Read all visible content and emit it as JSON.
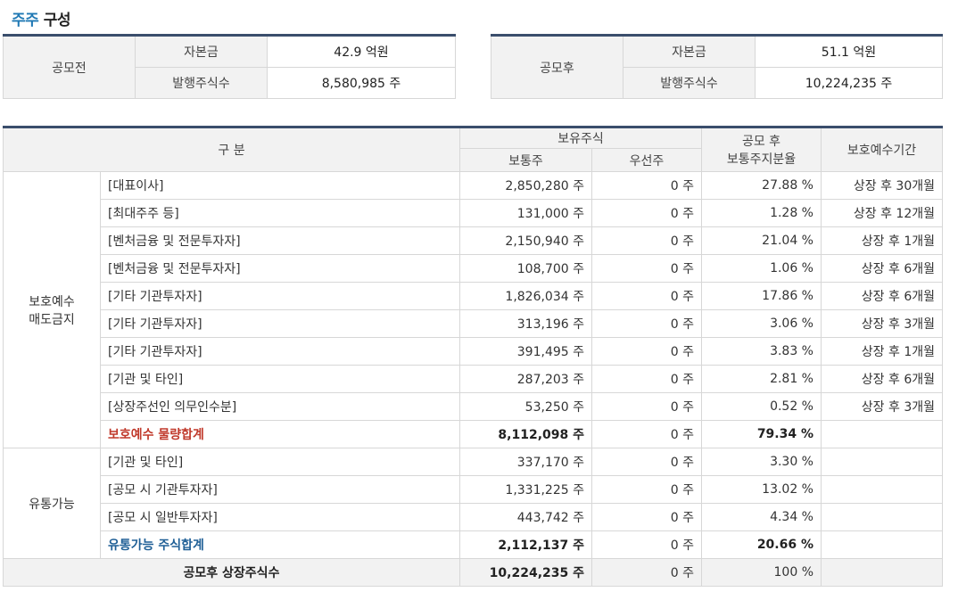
{
  "section_title_accent": "주주",
  "section_title_rest": "구성",
  "before": {
    "label": "공모전",
    "capital_label": "자본금",
    "capital_value": "42.9 억원",
    "shares_label": "발행주식수",
    "shares_value": "8,580,985 주"
  },
  "after": {
    "label": "공모후",
    "capital_label": "자본금",
    "capital_value": "51.1 억원",
    "shares_label": "발행주식수",
    "shares_value": "10,224,235 주"
  },
  "headers": {
    "category": "구   분",
    "holdings": "보유주식",
    "common": "보통주",
    "preferred": "우선주",
    "ratio_line1": "공모 후",
    "ratio_line2": "보통주지분율",
    "lockup": "보호예수기간"
  },
  "group1": {
    "label_line1": "보호예수",
    "label_line2": "매도금지",
    "rows": [
      {
        "name": "[대표이사]",
        "common": "2,850,280 주",
        "preferred": "0 주",
        "ratio": "27.88 %",
        "period": "상장 후 30개월"
      },
      {
        "name": "[최대주주 등]",
        "common": "131,000 주",
        "preferred": "0 주",
        "ratio": "1.28 %",
        "period": "상장 후 12개월"
      },
      {
        "name": "[벤처금융 및 전문투자자]",
        "common": "2,150,940 주",
        "preferred": "0 주",
        "ratio": "21.04 %",
        "period": "상장 후 1개월"
      },
      {
        "name": "[벤처금융 및 전문투자자]",
        "common": "108,700 주",
        "preferred": "0 주",
        "ratio": "1.06 %",
        "period": "상장 후 6개월"
      },
      {
        "name": "[기타 기관투자자]",
        "common": "1,826,034 주",
        "preferred": "0 주",
        "ratio": "17.86 %",
        "period": "상장 후 6개월"
      },
      {
        "name": "[기타 기관투자자]",
        "common": "313,196 주",
        "preferred": "0 주",
        "ratio": "3.06 %",
        "period": "상장 후 3개월"
      },
      {
        "name": "[기타 기관투자자]",
        "common": "391,495 주",
        "preferred": "0 주",
        "ratio": "3.83 %",
        "period": "상장 후 1개월"
      },
      {
        "name": "[기관 및 타인]",
        "common": "287,203 주",
        "preferred": "0 주",
        "ratio": "2.81 %",
        "period": "상장 후 6개월"
      },
      {
        "name": "[상장주선인 의무인수분]",
        "common": "53,250 주",
        "preferred": "0 주",
        "ratio": "0.52 %",
        "period": "상장 후 3개월"
      }
    ],
    "sum": {
      "name": "보호예수 물량합계",
      "common": "8,112,098 주",
      "preferred": "0 주",
      "ratio": "79.34 %",
      "period": ""
    }
  },
  "group2": {
    "label": "유통가능",
    "rows": [
      {
        "name": "[기관 및 타인]",
        "common": "337,170 주",
        "preferred": "0 주",
        "ratio": "3.30 %",
        "period": ""
      },
      {
        "name": "[공모 시 기관투자자]",
        "common": "1,331,225 주",
        "preferred": "0 주",
        "ratio": "13.02 %",
        "period": ""
      },
      {
        "name": "[공모 시 일반투자자]",
        "common": "443,742 주",
        "preferred": "0 주",
        "ratio": "4.34 %",
        "period": ""
      }
    ],
    "sum": {
      "name": "유통가능 주식합계",
      "common": "2,112,137 주",
      "preferred": "0 주",
      "ratio": "20.66 %",
      "period": ""
    }
  },
  "total": {
    "name": "공모후 상장주식수",
    "common": "10,224,235 주",
    "preferred": "0 주",
    "ratio": "100 %",
    "period": ""
  },
  "colors": {
    "accent": "#1f78b4",
    "table_top_border": "#3a4e6c",
    "sum1_text": "#c0392b",
    "sum2_text": "#1f5f96",
    "header_bg": "#f2f2f2"
  }
}
